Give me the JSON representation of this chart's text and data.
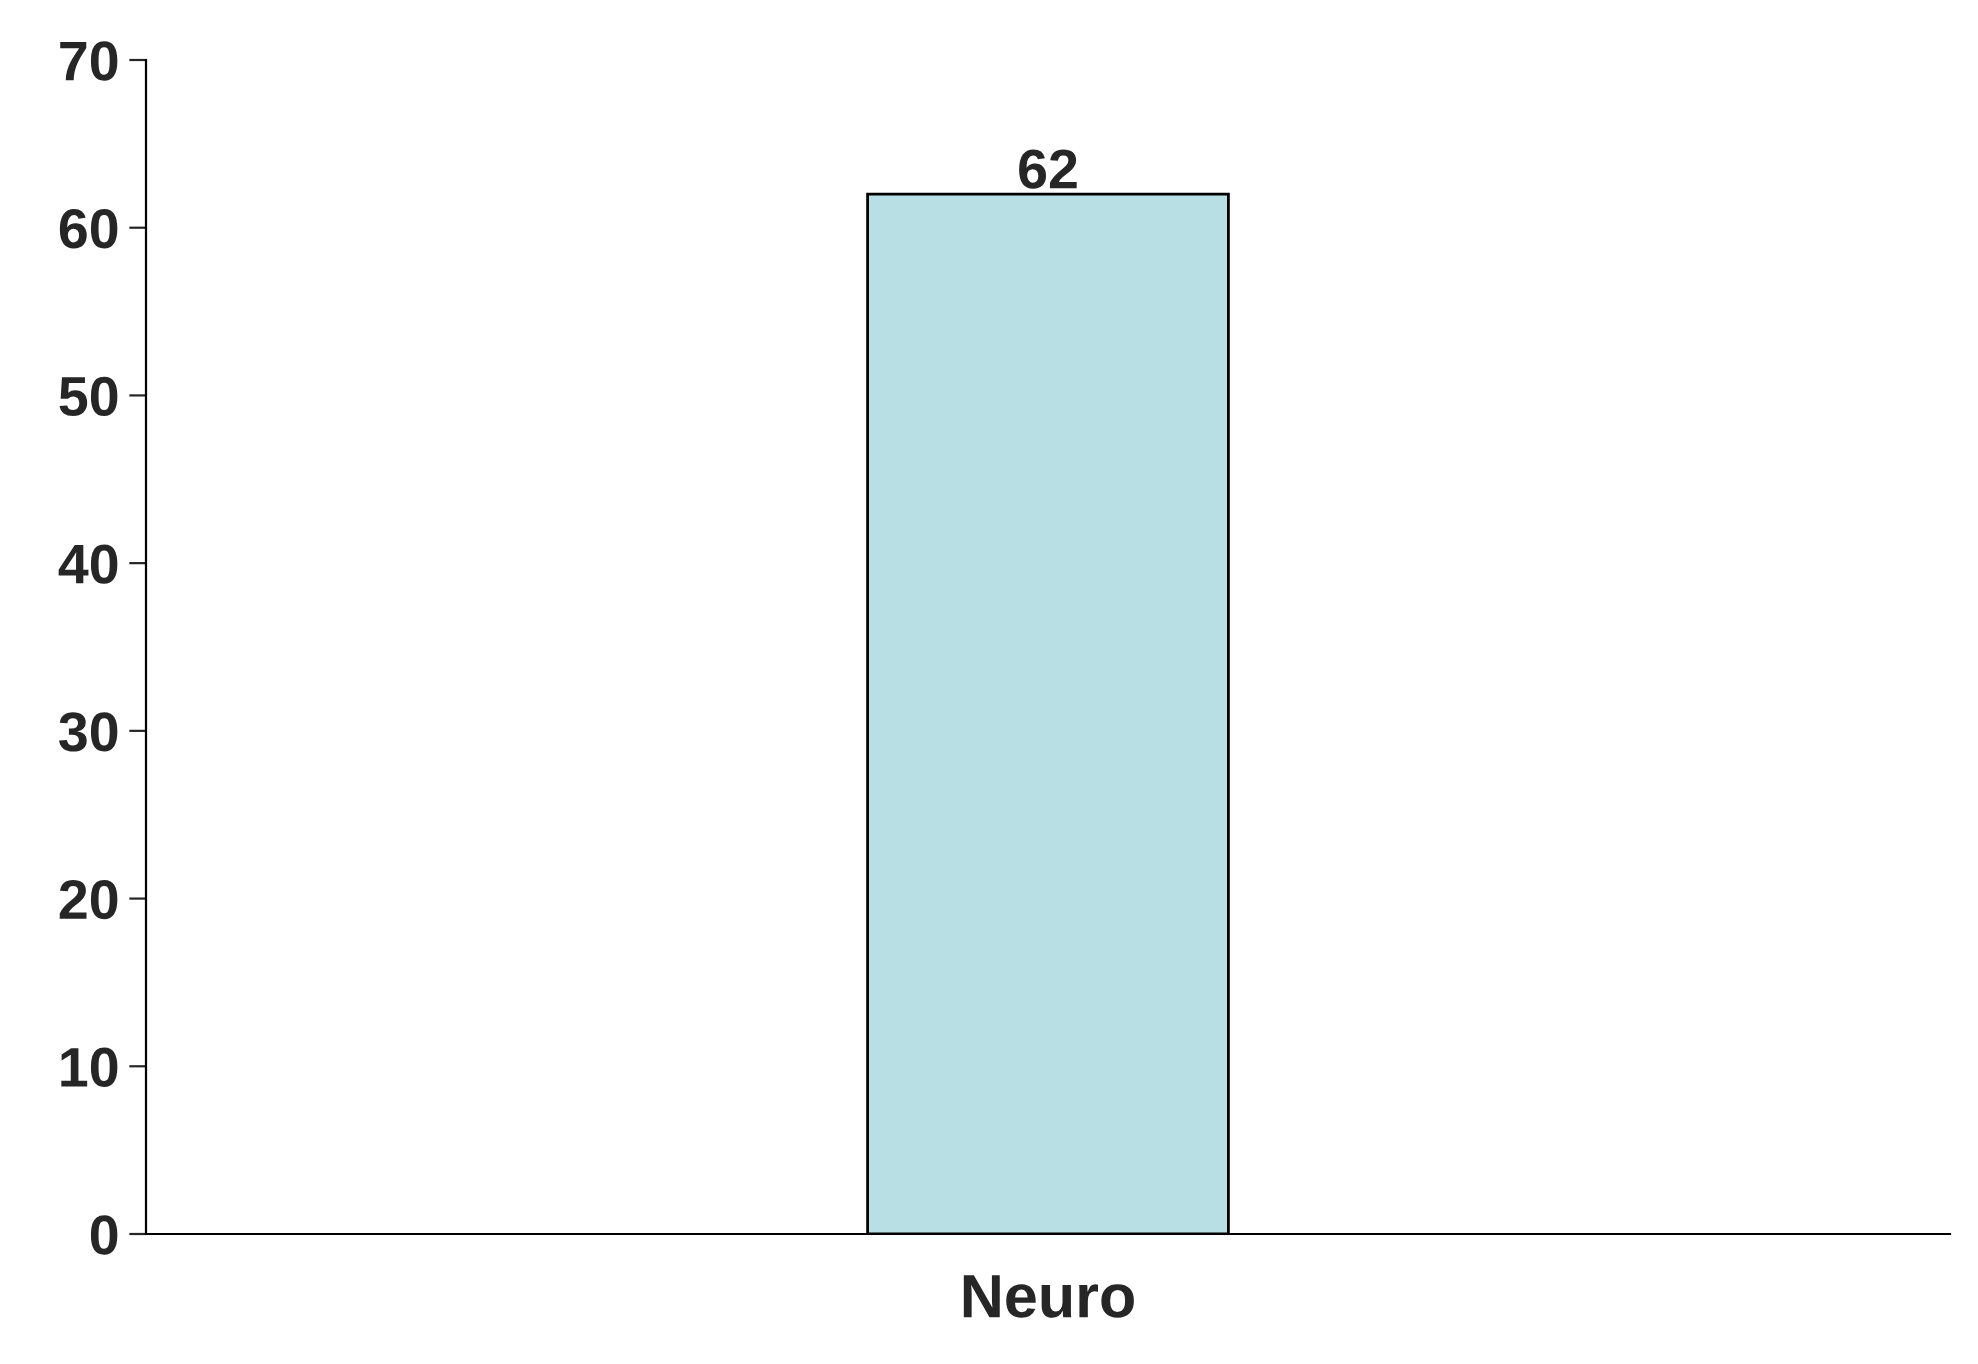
{
  "chart_data": {
    "type": "bar",
    "categories": [
      "Neuro"
    ],
    "values": [
      62
    ],
    "color": "#b8dfe3",
    "data_labels": true,
    "ylim": [
      0,
      70
    ],
    "yticks": [
      0,
      10,
      20,
      30,
      40,
      50,
      60,
      70
    ],
    "grid": false,
    "legend": false
  }
}
